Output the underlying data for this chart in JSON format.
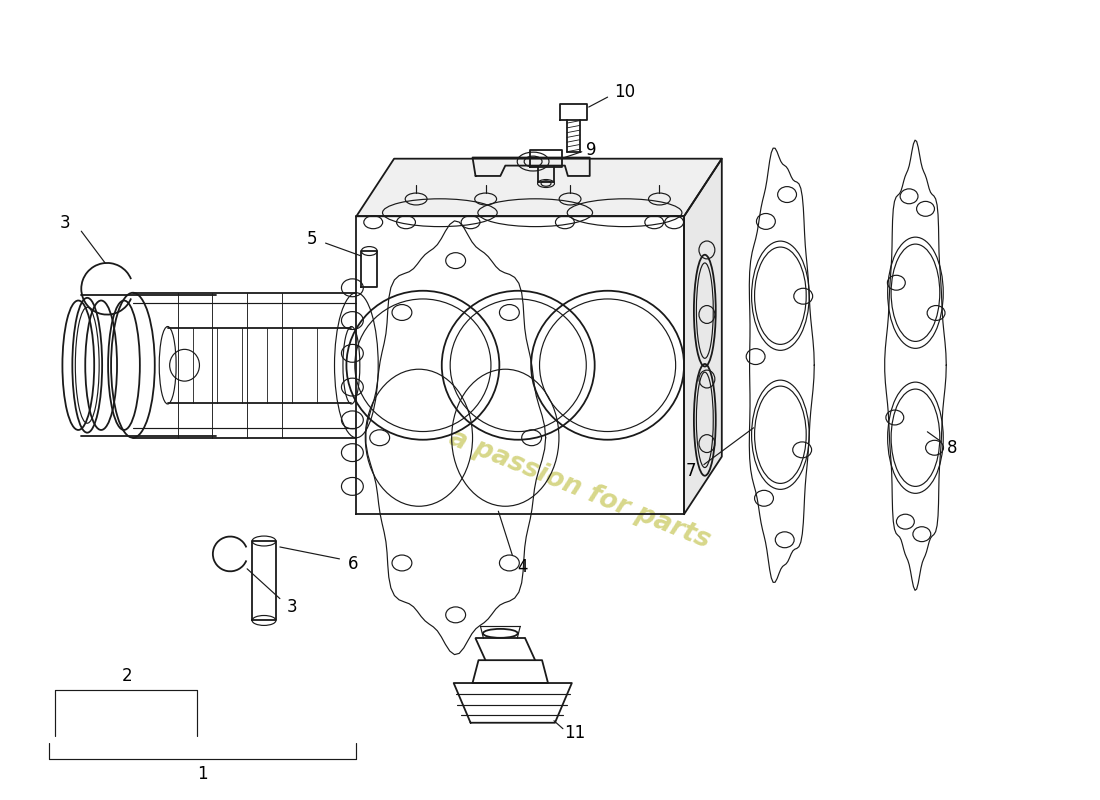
{
  "background_color": "#ffffff",
  "line_color": "#1a1a1a",
  "watermark_text": "a passion for parts",
  "watermark_color": "#d4d480"
}
